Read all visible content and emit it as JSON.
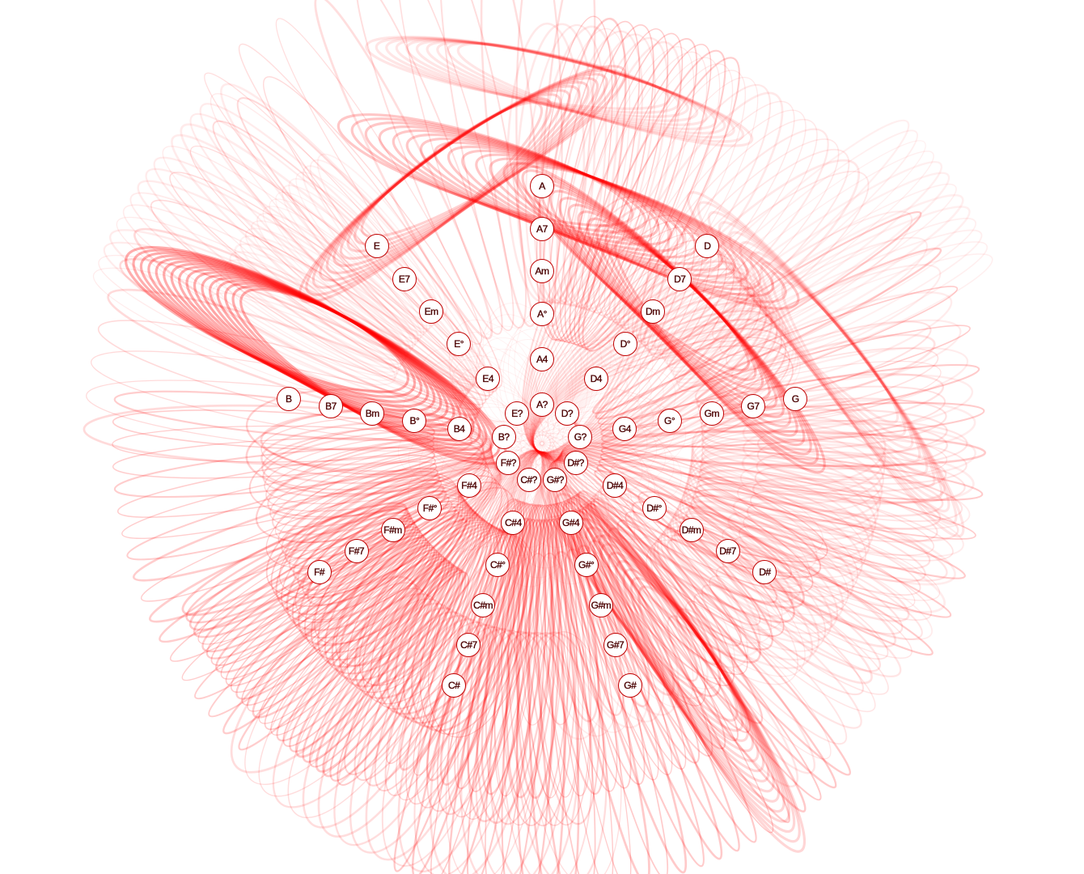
{
  "colors": {
    "loop": "#ff0000",
    "node_fill": "#ffffff",
    "node_border": "#c00000",
    "label": "#4a0000",
    "background": "#ffffff"
  },
  "ring_order": [
    "A",
    "D",
    "G",
    "D#",
    "G#",
    "C#",
    "F#",
    "B",
    "E"
  ],
  "rings": [
    {
      "level": 0,
      "labels": [
        "A?",
        "D?",
        "G?",
        "D#?",
        "G#?",
        "C#?",
        "F#?",
        "B?",
        "E?"
      ]
    },
    {
      "level": 1,
      "labels": [
        "A4",
        "D4",
        "G4",
        "D#4",
        "G#4",
        "C#4",
        "F#4",
        "B4",
        "E4"
      ]
    },
    {
      "level": 2,
      "labels": [
        "A°",
        "D°",
        "G°",
        "D#°",
        "G#°",
        "C#°",
        "F#°",
        "B°",
        "E°"
      ]
    },
    {
      "level": 3,
      "labels": [
        "Am",
        "Dm",
        "Gm",
        "D#m",
        "G#m",
        "C#m",
        "F#m",
        "Bm",
        "Em"
      ]
    },
    {
      "level": 4,
      "labels": [
        "A7",
        "D7",
        "G7",
        "D#7",
        "G#7",
        "C#7",
        "F#7",
        "B7",
        "E7"
      ]
    },
    {
      "level": 5,
      "labels": [
        "A",
        "D",
        "G",
        "D#",
        "G#",
        "C#",
        "F#",
        "B",
        "E"
      ]
    }
  ],
  "highlighted_chords": [
    "B4",
    "B",
    "D",
    "A",
    "D#"
  ]
}
